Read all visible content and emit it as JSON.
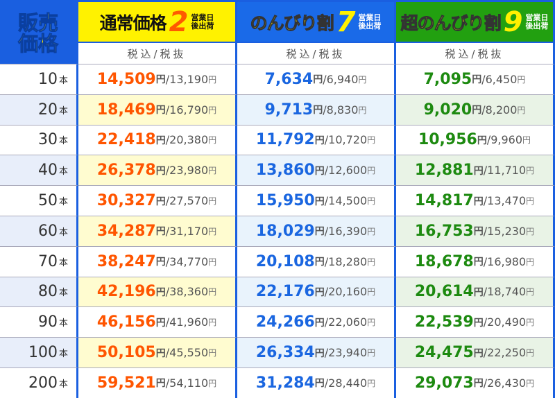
{
  "header": {
    "corner": [
      "販売",
      "価格"
    ],
    "plans": [
      {
        "title": "通常価格",
        "days": "2",
        "note": [
          "営業日",
          "後出荷"
        ],
        "color": "#fff200"
      },
      {
        "title": "のんびり割",
        "days": "7",
        "note": [
          "営業日",
          "後出荷"
        ],
        "color": "#1a6ae8"
      },
      {
        "title": "超のんびり割",
        "days": "9",
        "note": [
          "営業日",
          "後出荷"
        ],
        "color": "#22a010"
      }
    ],
    "sub": "税込/税抜"
  },
  "unit": "本",
  "yen": "円",
  "sep": "/",
  "rows": [
    {
      "qty": "10",
      "p": [
        [
          "14,509",
          "13,190"
        ],
        [
          "7,634",
          "6,940"
        ],
        [
          "7,095",
          "6,450"
        ]
      ]
    },
    {
      "qty": "20",
      "p": [
        [
          "18,469",
          "16,790"
        ],
        [
          "9,713",
          "8,830"
        ],
        [
          "9,020",
          "8,200"
        ]
      ]
    },
    {
      "qty": "30",
      "p": [
        [
          "22,418",
          "20,380"
        ],
        [
          "11,792",
          "10,720"
        ],
        [
          "10,956",
          "9,960"
        ]
      ]
    },
    {
      "qty": "40",
      "p": [
        [
          "26,378",
          "23,980"
        ],
        [
          "13,860",
          "12,600"
        ],
        [
          "12,881",
          "11,710"
        ]
      ]
    },
    {
      "qty": "50",
      "p": [
        [
          "30,327",
          "27,570"
        ],
        [
          "15,950",
          "14,500"
        ],
        [
          "14,817",
          "13,470"
        ]
      ]
    },
    {
      "qty": "60",
      "p": [
        [
          "34,287",
          "31,170"
        ],
        [
          "18,029",
          "16,390"
        ],
        [
          "16,753",
          "15,230"
        ]
      ]
    },
    {
      "qty": "70",
      "p": [
        [
          "38,247",
          "34,770"
        ],
        [
          "20,108",
          "18,280"
        ],
        [
          "18,678",
          "16,980"
        ]
      ]
    },
    {
      "qty": "80",
      "p": [
        [
          "42,196",
          "38,360"
        ],
        [
          "22,176",
          "20,160"
        ],
        [
          "20,614",
          "18,740"
        ]
      ]
    },
    {
      "qty": "90",
      "p": [
        [
          "46,156",
          "41,960"
        ],
        [
          "24,266",
          "22,060"
        ],
        [
          "22,539",
          "20,490"
        ]
      ]
    },
    {
      "qty": "100",
      "p": [
        [
          "50,105",
          "45,550"
        ],
        [
          "26,334",
          "23,940"
        ],
        [
          "24,475",
          "22,250"
        ]
      ]
    },
    {
      "qty": "200",
      "p": [
        [
          "59,521",
          "54,110"
        ],
        [
          "31,284",
          "28,440"
        ],
        [
          "29,073",
          "26,430"
        ]
      ]
    }
  ]
}
